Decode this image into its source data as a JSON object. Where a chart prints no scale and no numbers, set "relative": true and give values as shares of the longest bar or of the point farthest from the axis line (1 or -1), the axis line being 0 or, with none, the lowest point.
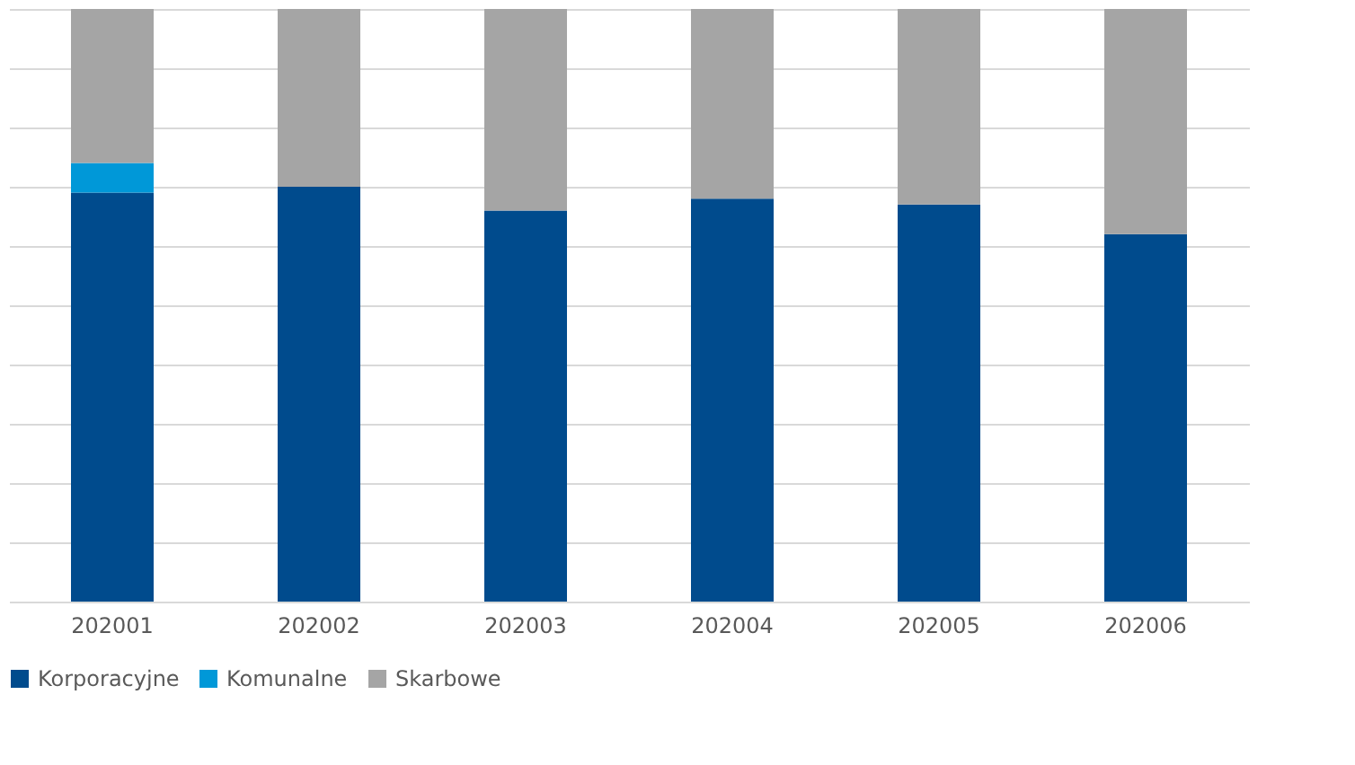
{
  "chart_data": {
    "type": "bar",
    "stacked": true,
    "relative": true,
    "grid": "y",
    "legend": "bottom",
    "categories": [
      "202001",
      "202002",
      "202003",
      "202004",
      "202005",
      "202006"
    ],
    "series": [
      {
        "name": "Korporacyjne",
        "color": "#004b8d",
        "values": [
          0.69,
          0.7,
          0.66,
          0.68,
          0.67,
          0.62
        ]
      },
      {
        "name": "Komunalne",
        "color": "#0098d8",
        "values": [
          0.05,
          0,
          0,
          0,
          0,
          0
        ]
      },
      {
        "name": "Skarbowe",
        "color": "#a5a5a5",
        "values": [
          0.26,
          0.3,
          0.34,
          0.32,
          0.33,
          0.38
        ]
      }
    ]
  }
}
